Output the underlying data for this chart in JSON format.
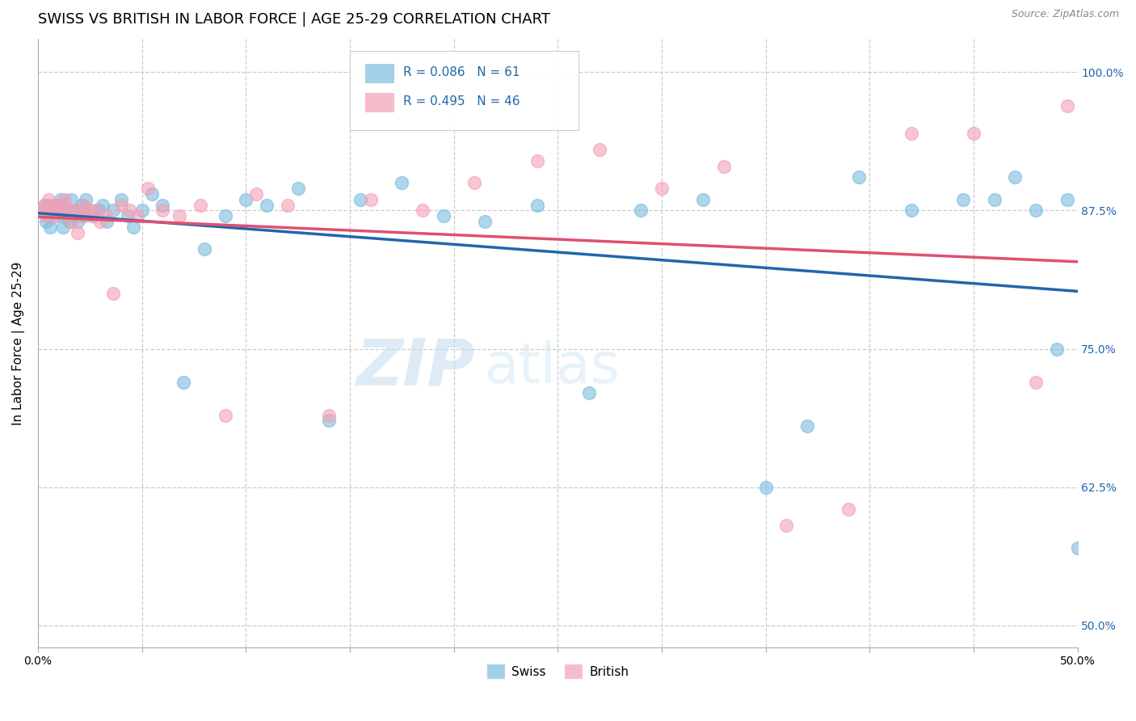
{
  "title": "SWISS VS BRITISH IN LABOR FORCE | AGE 25-29 CORRELATION CHART",
  "source": "Source: ZipAtlas.com",
  "ylabel": "In Labor Force | Age 25-29",
  "xlim": [
    0.0,
    0.5
  ],
  "ylim": [
    0.48,
    1.03
  ],
  "ytick_positions": [
    0.5,
    0.625,
    0.75,
    0.875,
    1.0
  ],
  "ytick_labels": [
    "50.0%",
    "62.5%",
    "75.0%",
    "87.5%",
    "100.0%"
  ],
  "swiss_R": 0.086,
  "swiss_N": 61,
  "british_R": 0.495,
  "british_N": 46,
  "swiss_color": "#7bbcde",
  "british_color": "#f4a0b5",
  "swiss_line_color": "#2166ac",
  "british_line_color": "#e05070",
  "watermark_zip": "ZIP",
  "watermark_atlas": "atlas",
  "grid_color": "#cccccc",
  "background_color": "#ffffff",
  "title_fontsize": 13,
  "axis_label_fontsize": 11,
  "tick_fontsize": 10,
  "marker_size": 130,
  "line_width": 2.5,
  "swiss_x": [
    0.002,
    0.003,
    0.004,
    0.005,
    0.005,
    0.006,
    0.007,
    0.008,
    0.009,
    0.01,
    0.011,
    0.012,
    0.013,
    0.014,
    0.015,
    0.016,
    0.017,
    0.018,
    0.019,
    0.02,
    0.021,
    0.022,
    0.023,
    0.025,
    0.027,
    0.029,
    0.031,
    0.033,
    0.036,
    0.04,
    0.043,
    0.046,
    0.05,
    0.055,
    0.06,
    0.07,
    0.08,
    0.09,
    0.1,
    0.11,
    0.125,
    0.14,
    0.155,
    0.175,
    0.195,
    0.215,
    0.24,
    0.265,
    0.29,
    0.32,
    0.35,
    0.37,
    0.395,
    0.42,
    0.445,
    0.46,
    0.47,
    0.48,
    0.49,
    0.495,
    0.5
  ],
  "swiss_y": [
    0.875,
    0.88,
    0.865,
    0.87,
    0.88,
    0.86,
    0.875,
    0.87,
    0.88,
    0.875,
    0.885,
    0.86,
    0.87,
    0.875,
    0.865,
    0.885,
    0.87,
    0.875,
    0.865,
    0.875,
    0.88,
    0.87,
    0.885,
    0.875,
    0.87,
    0.875,
    0.88,
    0.865,
    0.875,
    0.885,
    0.87,
    0.86,
    0.875,
    0.89,
    0.88,
    0.72,
    0.84,
    0.87,
    0.885,
    0.88,
    0.895,
    0.685,
    0.885,
    0.9,
    0.87,
    0.865,
    0.88,
    0.71,
    0.875,
    0.885,
    0.625,
    0.68,
    0.905,
    0.875,
    0.885,
    0.885,
    0.905,
    0.875,
    0.75,
    0.885,
    0.57
  ],
  "british_x": [
    0.002,
    0.003,
    0.004,
    0.005,
    0.006,
    0.007,
    0.008,
    0.01,
    0.012,
    0.013,
    0.015,
    0.016,
    0.018,
    0.019,
    0.021,
    0.022,
    0.024,
    0.026,
    0.028,
    0.03,
    0.033,
    0.036,
    0.04,
    0.044,
    0.048,
    0.053,
    0.06,
    0.068,
    0.078,
    0.09,
    0.105,
    0.12,
    0.14,
    0.16,
    0.185,
    0.21,
    0.24,
    0.27,
    0.3,
    0.33,
    0.36,
    0.39,
    0.42,
    0.45,
    0.48,
    0.495
  ],
  "british_y": [
    0.875,
    0.88,
    0.87,
    0.885,
    0.875,
    0.88,
    0.87,
    0.875,
    0.88,
    0.885,
    0.875,
    0.865,
    0.875,
    0.855,
    0.87,
    0.88,
    0.875,
    0.87,
    0.875,
    0.865,
    0.87,
    0.8,
    0.88,
    0.875,
    0.87,
    0.895,
    0.875,
    0.87,
    0.88,
    0.69,
    0.89,
    0.88,
    0.69,
    0.885,
    0.875,
    0.9,
    0.92,
    0.93,
    0.895,
    0.915,
    0.59,
    0.605,
    0.945,
    0.945,
    0.72,
    0.97
  ]
}
